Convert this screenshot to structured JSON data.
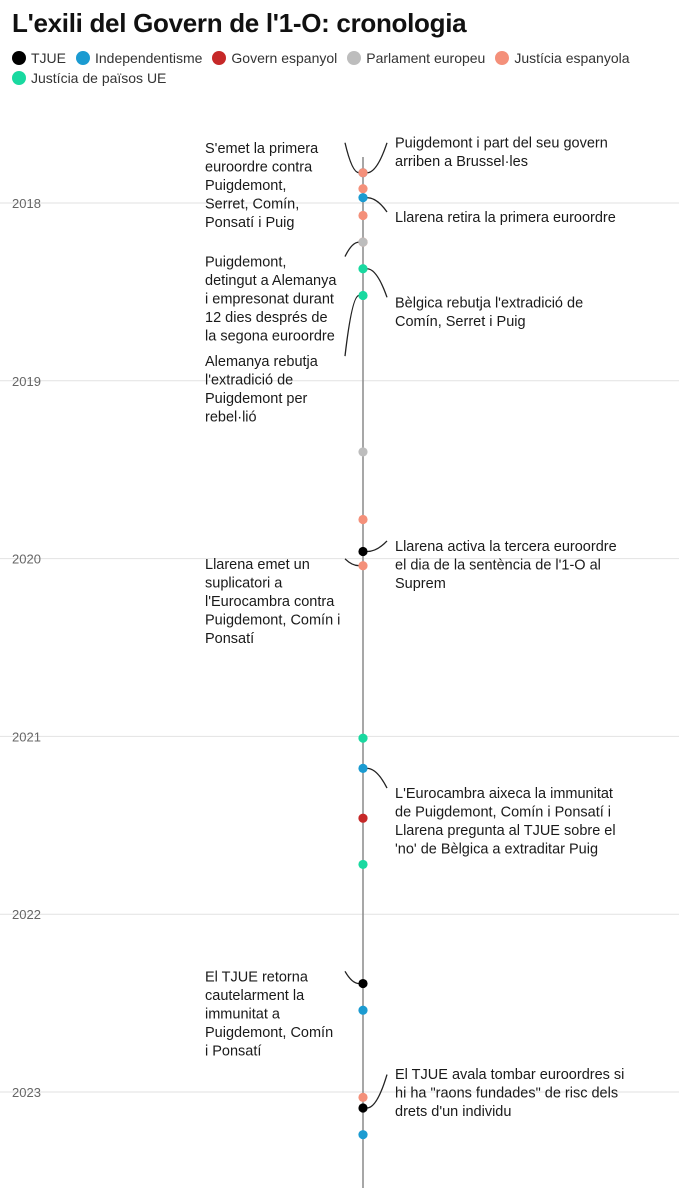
{
  "title": "L'exili del Govern de l'1-O: cronologia",
  "legend": [
    {
      "name": "TJUE",
      "color": "#000000"
    },
    {
      "name": "Independentisme",
      "color": "#1b9bd1"
    },
    {
      "name": "Govern espanyol",
      "color": "#c62828"
    },
    {
      "name": "Parlament europeu",
      "color": "#bdbdbd"
    },
    {
      "name": "Justícia espanyola",
      "color": "#f4907a"
    },
    {
      "name": "Justícia de països UE",
      "color": "#19d9a0"
    }
  ],
  "chart_data": {
    "type": "scatter",
    "orientation": "vertical-timeline",
    "title": "L'exili del Govern de l'1-O: cronologia",
    "year_ticks": [
      "2018",
      "2019",
      "2020",
      "2021",
      "2022",
      "2023"
    ],
    "time_range": [
      2017.75,
      2024.0
    ],
    "grid": true,
    "legend_position": "top",
    "events": [
      {
        "t": 2017.83,
        "cat": "Independentisme"
      },
      {
        "t": 2017.83,
        "cat": "Justícia espanyola"
      },
      {
        "t": 2017.92,
        "cat": "Justícia espanyola"
      },
      {
        "t": 2017.97,
        "cat": "Independentisme"
      },
      {
        "t": 2018.07,
        "cat": "Justícia espanyola"
      },
      {
        "t": 2018.22,
        "cat": "Justícia espanyola"
      },
      {
        "t": 2018.22,
        "cat": "Parlament europeu"
      },
      {
        "t": 2018.37,
        "cat": "Justícia de països UE"
      },
      {
        "t": 2018.52,
        "cat": "Justícia de països UE"
      },
      {
        "t": 2019.4,
        "cat": "Parlament europeu"
      },
      {
        "t": 2019.78,
        "cat": "Justícia espanyola"
      },
      {
        "t": 2019.96,
        "cat": "TJUE"
      },
      {
        "t": 2020.04,
        "cat": "Justícia espanyola"
      },
      {
        "t": 2021.01,
        "cat": "Justícia de països UE"
      },
      {
        "t": 2021.18,
        "cat": "Independentisme"
      },
      {
        "t": 2021.46,
        "cat": "Govern espanyol"
      },
      {
        "t": 2021.72,
        "cat": "Justícia de països UE"
      },
      {
        "t": 2022.39,
        "cat": "TJUE"
      },
      {
        "t": 2022.54,
        "cat": "Independentisme"
      },
      {
        "t": 2023.03,
        "cat": "Justícia espanyola"
      },
      {
        "t": 2023.09,
        "cat": "TJUE"
      },
      {
        "t": 2023.24,
        "cat": "Independentisme"
      }
    ],
    "annotations": [
      {
        "t": 2017.83,
        "side": "right",
        "text_t": 2017.62,
        "lines": [
          "Puigdemont i part del seu govern",
          "arriben a Brussel·les"
        ]
      },
      {
        "t": 2017.83,
        "side": "left",
        "text_t": 2017.65,
        "lines": [
          "S'emet la primera",
          "euroordre contra",
          "Puigdemont,",
          "Serret, Comín,",
          "Ponsatí i Puig"
        ]
      },
      {
        "t": 2017.97,
        "side": "right",
        "text_t": 2018.04,
        "lines": [
          "Llarena retira la primera euroordre"
        ]
      },
      {
        "t": 2018.22,
        "side": "left",
        "text_t": 2018.29,
        "lines": [
          "Puigdemont,",
          "detingut a Alemanya",
          "i empresonat durant",
          "12 dies després de",
          "la segona euroordre"
        ]
      },
      {
        "t": 2018.37,
        "side": "right",
        "text_t": 2018.52,
        "lines": [
          "Bèlgica rebutja l'extradició de",
          "Comín, Serret i Puig"
        ]
      },
      {
        "t": 2018.52,
        "side": "left",
        "text_t": 2018.85,
        "lines": [
          "Alemanya rebutja",
          "l'extradició de",
          "Puigdemont per",
          "rebel·lió"
        ]
      },
      {
        "t": 2019.96,
        "side": "right",
        "text_t": 2019.89,
        "lines": [
          "Llarena activa la tercera euroordre",
          "el dia de la sentència de l'1-O al",
          "Suprem"
        ]
      },
      {
        "t": 2020.04,
        "side": "left",
        "text_t": 2019.99,
        "lines": [
          "Llarena emet un",
          "suplicatori a",
          "l'Eurocambra contra",
          "Puigdemont, Comín i",
          "Ponsatí"
        ]
      },
      {
        "t": 2021.18,
        "side": "right",
        "text_t": 2021.28,
        "lines": [
          "L'Eurocambra aixeca la immunitat",
          "de Puigdemont, Comín i Ponsatí i",
          "Llarena pregunta al TJUE sobre el",
          "'no' de Bèlgica a extraditar Puig"
        ]
      },
      {
        "t": 2022.39,
        "side": "left",
        "text_t": 2022.31,
        "lines": [
          "El TJUE retorna",
          "cautelarment la",
          "immunitat a",
          "Puigdemont, Comín",
          "i Ponsatí"
        ]
      },
      {
        "t": 2023.09,
        "side": "right",
        "text_t": 2022.86,
        "lines": [
          "El TJUE avala tombar euroordres si",
          "hi ha \"raons fundades\" de risc dels",
          "drets d'un individu"
        ]
      }
    ]
  }
}
